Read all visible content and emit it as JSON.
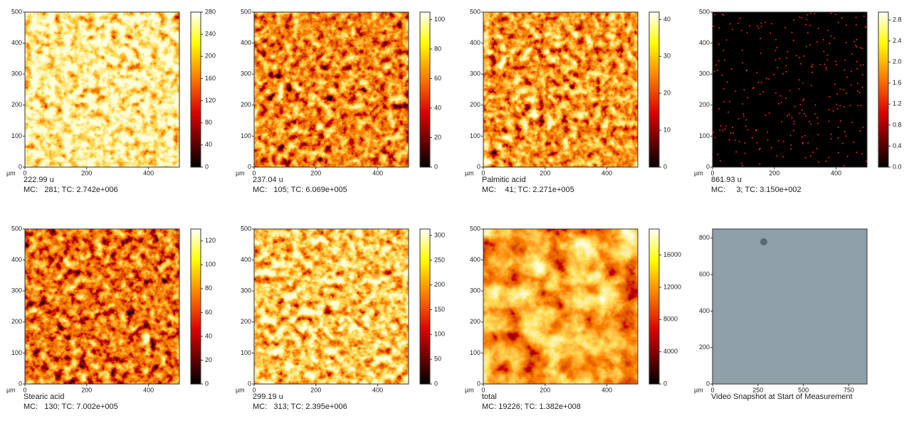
{
  "panels": [
    {
      "caption": [
        "222.99 u",
        "MC:   281; TC: 2.742e+006"
      ],
      "x_unit": "µm",
      "xlim": [
        0,
        500
      ],
      "xticks": [
        0,
        200,
        400
      ],
      "ylim": [
        0,
        500
      ],
      "yticks": [
        0,
        100,
        200,
        300,
        400,
        500
      ],
      "colorbar": {
        "lim": [
          0,
          280
        ],
        "ticks": [
          0,
          40,
          80,
          120,
          160,
          200,
          240,
          280
        ]
      }
    },
    {
      "caption": [
        "237.04 u",
        "MC:   105; TC: 6.069e+005"
      ],
      "x_unit": "µm",
      "xlim": [
        0,
        500
      ],
      "xticks": [
        0,
        200,
        400
      ],
      "ylim": [
        0,
        500
      ],
      "yticks": [
        0,
        100,
        200,
        300,
        400,
        500
      ],
      "colorbar": {
        "lim": [
          0,
          105
        ],
        "ticks": [
          0,
          20,
          40,
          60,
          80,
          100
        ]
      }
    },
    {
      "caption": [
        "Palmitic acid",
        "MC:    41; TC: 2.271e+005"
      ],
      "x_unit": "µm",
      "xlim": [
        0,
        500
      ],
      "xticks": [
        0,
        200,
        400
      ],
      "ylim": [
        0,
        500
      ],
      "yticks": [
        0,
        100,
        200,
        300,
        400,
        500
      ],
      "colorbar": {
        "lim": [
          0,
          42
        ],
        "ticks": [
          0,
          10,
          20,
          30,
          40
        ]
      }
    },
    {
      "caption": [
        "861.93 u",
        "MC:     3; TC: 3.150e+002"
      ],
      "x_unit": "µm",
      "xlim": [
        0,
        500
      ],
      "xticks": [
        0,
        200,
        400
      ],
      "ylim": [
        0,
        500
      ],
      "yticks": [
        0,
        100,
        200,
        300,
        400,
        500
      ],
      "colorbar": {
        "lim": [
          0,
          2.95
        ],
        "ticks": [
          {
            "value": 0,
            "label": "0.0"
          },
          0.4,
          0.8,
          1.2,
          1.6,
          {
            "value": 2,
            "label": "2.0"
          },
          2.4,
          2.8
        ]
      }
    },
    {
      "caption": [
        "Stearic acid",
        "MC:   130; TC: 7.002e+005"
      ],
      "x_unit": "µm",
      "xlim": [
        0,
        500
      ],
      "xticks": [
        0,
        200,
        400
      ],
      "ylim": [
        0,
        500
      ],
      "yticks": [
        0,
        100,
        200,
        300,
        400,
        500
      ],
      "colorbar": {
        "lim": [
          0,
          130
        ],
        "ticks": [
          0,
          20,
          40,
          60,
          80,
          100,
          120
        ]
      }
    },
    {
      "caption": [
        "299.19 u",
        "MC:   313; TC: 2.395e+006"
      ],
      "x_unit": "µm",
      "xlim": [
        0,
        500
      ],
      "xticks": [
        0,
        200,
        400
      ],
      "ylim": [
        0,
        500
      ],
      "yticks": [
        0,
        100,
        200,
        300,
        400,
        500
      ],
      "colorbar": {
        "lim": [
          0,
          313
        ],
        "ticks": [
          0,
          50,
          100,
          150,
          200,
          250,
          300
        ]
      }
    },
    {
      "caption": [
        "total",
        "MC: 19226; TC: 1.382e+008"
      ],
      "x_unit": "µm",
      "xlim": [
        0,
        500
      ],
      "xticks": [
        0,
        200,
        400
      ],
      "ylim": [
        0,
        500
      ],
      "yticks": [
        0,
        100,
        200,
        300,
        400,
        500
      ],
      "colorbar": {
        "lim": [
          0,
          19226
        ],
        "ticks": [
          0,
          4000,
          8000,
          12000,
          16000
        ]
      }
    },
    {
      "caption": [
        "Video Snapshot at Start of Measurement"
      ],
      "x_unit": "µm",
      "xlim": [
        0,
        850
      ],
      "xticks": [
        0,
        250,
        500,
        750
      ],
      "ylim": [
        0,
        850
      ],
      "yticks": [
        0,
        200,
        400,
        600,
        800
      ]
    }
  ]
}
